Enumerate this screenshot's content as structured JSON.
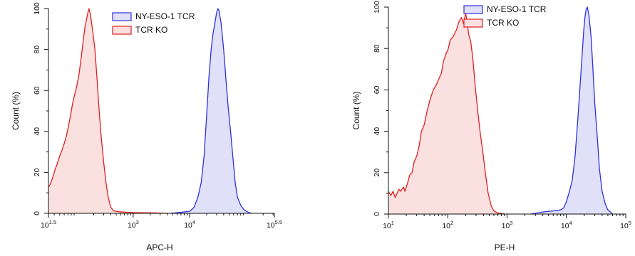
{
  "chart_data": [
    {
      "type": "area",
      "xlabel": "APC-H",
      "ylabel": "Count (%)",
      "x_scale": "log10",
      "xlim": [
        31.6228,
        316228
      ],
      "ylim": [
        0,
        100
      ],
      "x_ticks": [
        {
          "value": 31.6228,
          "base": "10",
          "exp": "1.5"
        },
        {
          "value": 1000,
          "base": "10",
          "exp": "3"
        },
        {
          "value": 10000,
          "base": "10",
          "exp": "4"
        },
        {
          "value": 316228,
          "base": "10",
          "exp": "5.5"
        }
      ],
      "y_ticks": [
        0,
        20,
        40,
        60,
        80,
        100
      ],
      "legend_position": "top-center",
      "series": [
        {
          "name": "NY-ESO-1 TCR",
          "color": "#3030e0",
          "fill": "#e0e0f8",
          "points": [
            [
              4500,
              0
            ],
            [
              7000,
              0.5
            ],
            [
              10000,
              1
            ],
            [
              12000,
              3
            ],
            [
              14000,
              8
            ],
            [
              16000,
              15
            ],
            [
              18000,
              28
            ],
            [
              20000,
              48
            ],
            [
              22000,
              67
            ],
            [
              24000,
              80
            ],
            [
              26000,
              88
            ],
            [
              28000,
              93
            ],
            [
              30000,
              98
            ],
            [
              31600,
              100
            ],
            [
              33000,
              99
            ],
            [
              36000,
              93
            ],
            [
              40000,
              80
            ],
            [
              44000,
              65
            ],
            [
              48000,
              52
            ],
            [
              53000,
              40
            ],
            [
              58000,
              28
            ],
            [
              64000,
              15
            ],
            [
              70000,
              8
            ],
            [
              80000,
              4
            ],
            [
              90000,
              2
            ],
            [
              100000,
              1
            ],
            [
              110000,
              0.5
            ],
            [
              125000,
              0
            ]
          ]
        },
        {
          "name": "TCR KO",
          "color": "#e02020",
          "fill": "#fbe0e0",
          "points": [
            [
              31.6228,
              13
            ],
            [
              33,
              13.5
            ],
            [
              35,
              15
            ],
            [
              38,
              18
            ],
            [
              41,
              21
            ],
            [
              45,
              24
            ],
            [
              50,
              28
            ],
            [
              55,
              31
            ],
            [
              60,
              34
            ],
            [
              66,
              38
            ],
            [
              72,
              43
            ],
            [
              78,
              48
            ],
            [
              85,
              54
            ],
            [
              92,
              58
            ],
            [
              100,
              62
            ],
            [
              110,
              68
            ],
            [
              120,
              76
            ],
            [
              130,
              84
            ],
            [
              140,
              91
            ],
            [
              150,
              95
            ],
            [
              158,
              98
            ],
            [
              165,
              100
            ],
            [
              175,
              97
            ],
            [
              190,
              90
            ],
            [
              210,
              80
            ],
            [
              230,
              65
            ],
            [
              250,
              50
            ],
            [
              270,
              38
            ],
            [
              300,
              25
            ],
            [
              330,
              15
            ],
            [
              360,
              8
            ],
            [
              400,
              3
            ],
            [
              450,
              1.2
            ],
            [
              550,
              0.8
            ],
            [
              700,
              0.6
            ],
            [
              1000,
              0.4
            ],
            [
              1500,
              0.3
            ],
            [
              2500,
              0.2
            ],
            [
              4000,
              0
            ]
          ]
        }
      ]
    },
    {
      "type": "area",
      "xlabel": "PE-H",
      "ylabel": "Count (%)",
      "x_scale": "log10",
      "xlim": [
        10,
        100000
      ],
      "ylim": [
        0,
        100
      ],
      "x_ticks": [
        {
          "value": 10,
          "base": "10",
          "exp": "1"
        },
        {
          "value": 100,
          "base": "10",
          "exp": "2"
        },
        {
          "value": 1000,
          "base": "10",
          "exp": "3"
        },
        {
          "value": 10000,
          "base": "10",
          "exp": "4"
        },
        {
          "value": 100000,
          "base": "10",
          "exp": "5"
        }
      ],
      "y_ticks": [
        0,
        20,
        40,
        60,
        80,
        100
      ],
      "legend_position": "top-center",
      "series": [
        {
          "name": "NY-ESO-1 TCR",
          "color": "#3030e0",
          "fill": "#e0e0f8",
          "points": [
            [
              2500,
              0
            ],
            [
              4000,
              1
            ],
            [
              6000,
              1.5
            ],
            [
              8000,
              2
            ],
            [
              9000,
              3
            ],
            [
              10000,
              6
            ],
            [
              11000,
              10
            ],
            [
              12500,
              16
            ],
            [
              14000,
              28
            ],
            [
              15500,
              45
            ],
            [
              17000,
              62
            ],
            [
              18500,
              78
            ],
            [
              19500,
              88
            ],
            [
              20500,
              95
            ],
            [
              21500,
              99
            ],
            [
              22500,
              100
            ],
            [
              24000,
              96
            ],
            [
              26000,
              86
            ],
            [
              28000,
              70
            ],
            [
              30000,
              54
            ],
            [
              33000,
              38
            ],
            [
              36000,
              22
            ],
            [
              40000,
              11
            ],
            [
              45000,
              5
            ],
            [
              50000,
              2
            ],
            [
              55000,
              1
            ],
            [
              60000,
              0
            ]
          ]
        },
        {
          "name": "TCR KO",
          "color": "#e02020",
          "fill": "#fbe0e0",
          "points": [
            [
              10,
              11
            ],
            [
              11,
              9
            ],
            [
              12,
              11
            ],
            [
              13,
              8
            ],
            [
              14,
              10
            ],
            [
              15,
              12
            ],
            [
              16,
              11
            ],
            [
              18,
              13
            ],
            [
              19,
              11
            ],
            [
              21,
              15
            ],
            [
              23,
              19
            ],
            [
              25,
              20
            ],
            [
              27,
              25
            ],
            [
              30,
              28
            ],
            [
              33,
              33
            ],
            [
              36,
              40
            ],
            [
              40,
              43
            ],
            [
              45,
              50
            ],
            [
              50,
              55
            ],
            [
              57,
              60
            ],
            [
              63,
              62
            ],
            [
              70,
              65
            ],
            [
              78,
              68
            ],
            [
              85,
              74
            ],
            [
              95,
              78
            ],
            [
              100,
              79
            ],
            [
              110,
              84
            ],
            [
              125,
              86
            ],
            [
              140,
              89
            ],
            [
              155,
              93
            ],
            [
              170,
              95
            ],
            [
              185,
              92
            ],
            [
              200,
              97
            ],
            [
              210,
              94
            ],
            [
              225,
              87
            ],
            [
              245,
              83
            ],
            [
              265,
              75
            ],
            [
              290,
              62
            ],
            [
              320,
              50
            ],
            [
              350,
              40
            ],
            [
              390,
              30
            ],
            [
              430,
              20
            ],
            [
              480,
              10
            ],
            [
              540,
              4
            ],
            [
              600,
              1.5
            ],
            [
              700,
              0.5
            ],
            [
              900,
              0
            ]
          ]
        }
      ]
    }
  ]
}
